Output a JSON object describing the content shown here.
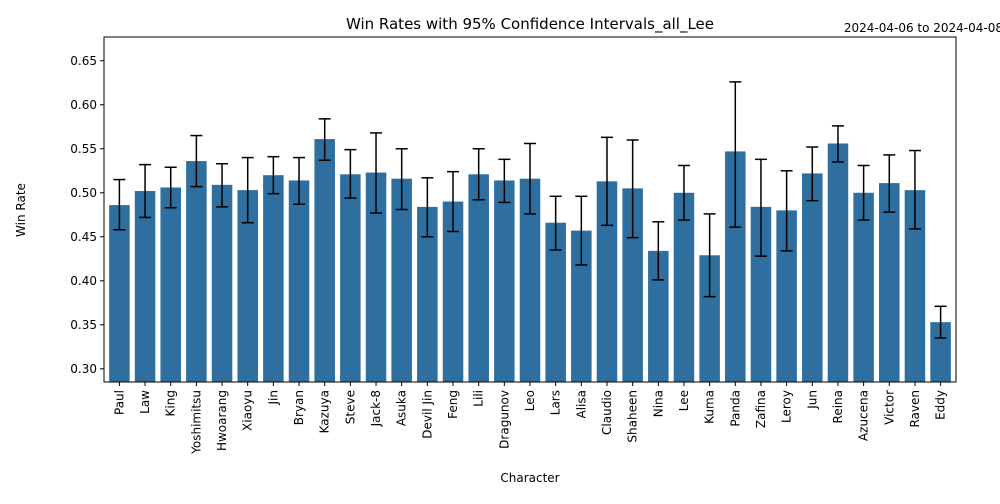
{
  "chart_data": {
    "type": "bar",
    "title": "Win Rates with 95% Confidence Intervals_all_Lee",
    "date_range": "2024-04-06 to 2024-04-08",
    "xlabel": "Character",
    "ylabel": "Win Rate",
    "ylim": [
      0.285,
      0.677
    ],
    "yticks": [
      0.3,
      0.35,
      0.4,
      0.45,
      0.5,
      0.55,
      0.6,
      0.65
    ],
    "ytick_labels": [
      "0.30",
      "0.35",
      "0.40",
      "0.45",
      "0.50",
      "0.55",
      "0.60",
      "0.65"
    ],
    "grid": false,
    "bar_color": "#2e6f9f",
    "errorbar_color": "#000000",
    "categories": [
      "Paul",
      "Law",
      "King",
      "Yoshimitsu",
      "Hwoarang",
      "Xiaoyu",
      "Jin",
      "Bryan",
      "Kazuya",
      "Steve",
      "Jack-8",
      "Asuka",
      "Devil Jin",
      "Feng",
      "Lili",
      "Dragunov",
      "Leo",
      "Lars",
      "Alisa",
      "Claudio",
      "Shaheen",
      "Nina",
      "Lee",
      "Kuma",
      "Panda",
      "Zafina",
      "Leroy",
      "Jun",
      "Reina",
      "Azucena",
      "Victor",
      "Raven",
      "Eddy"
    ],
    "values": [
      0.486,
      0.502,
      0.506,
      0.536,
      0.509,
      0.503,
      0.52,
      0.514,
      0.561,
      0.521,
      0.523,
      0.516,
      0.484,
      0.49,
      0.521,
      0.514,
      0.516,
      0.466,
      0.457,
      0.513,
      0.505,
      0.434,
      0.5,
      0.429,
      0.547,
      0.484,
      0.48,
      0.522,
      0.556,
      0.5,
      0.511,
      0.503,
      0.353
    ],
    "ci_lower": [
      0.458,
      0.472,
      0.483,
      0.507,
      0.484,
      0.466,
      0.499,
      0.487,
      0.537,
      0.494,
      0.477,
      0.481,
      0.45,
      0.456,
      0.492,
      0.489,
      0.476,
      0.435,
      0.418,
      0.463,
      0.449,
      0.401,
      0.469,
      0.382,
      0.461,
      0.428,
      0.434,
      0.491,
      0.535,
      0.469,
      0.478,
      0.459,
      0.335
    ],
    "ci_upper": [
      0.515,
      0.532,
      0.529,
      0.565,
      0.533,
      0.54,
      0.541,
      0.54,
      0.584,
      0.549,
      0.568,
      0.55,
      0.517,
      0.524,
      0.55,
      0.538,
      0.556,
      0.496,
      0.496,
      0.563,
      0.56,
      0.467,
      0.531,
      0.476,
      0.626,
      0.538,
      0.525,
      0.552,
      0.576,
      0.531,
      0.543,
      0.548,
      0.371
    ]
  }
}
